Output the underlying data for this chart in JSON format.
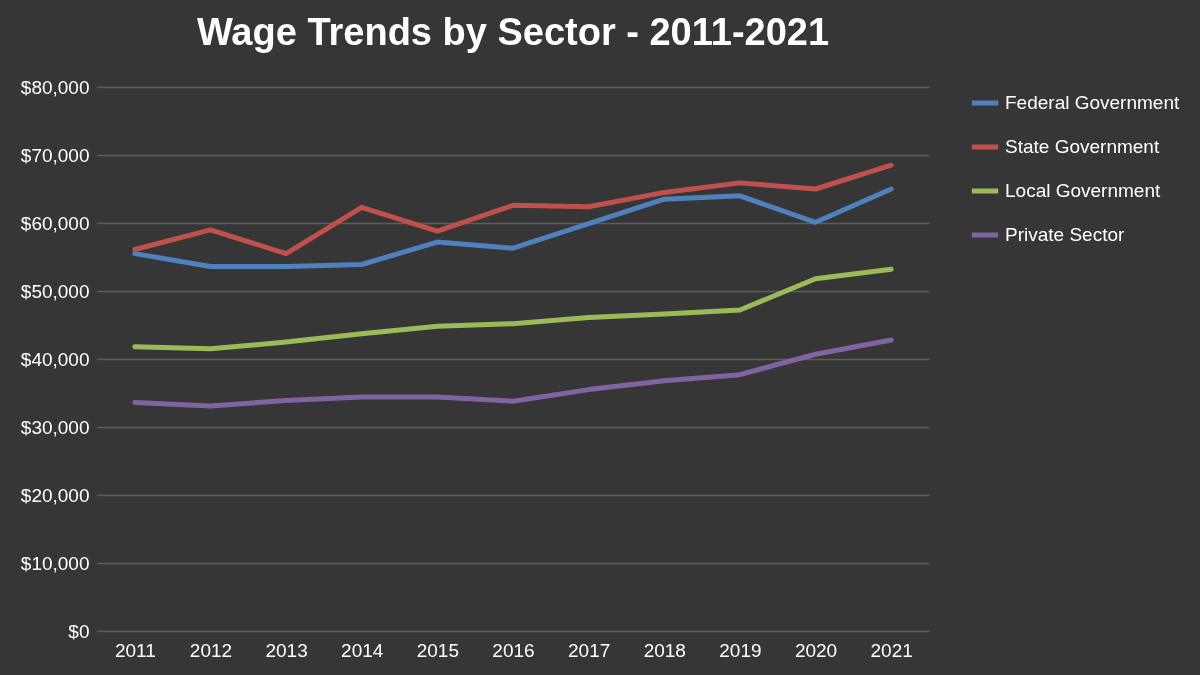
{
  "chart_data": {
    "type": "line",
    "title": "Wage Trends by Sector - 2011-2021",
    "categories": [
      "2011",
      "2012",
      "2013",
      "2014",
      "2015",
      "2016",
      "2017",
      "2018",
      "2019",
      "2020",
      "2021"
    ],
    "series": [
      {
        "name": "Federal Government",
        "color": "#4f81bd",
        "values": [
          55500,
          53600,
          53600,
          53900,
          57200,
          56300,
          59900,
          63500,
          64000,
          60100,
          65000
        ]
      },
      {
        "name": "State Government",
        "color": "#c0504d",
        "values": [
          56100,
          59000,
          55500,
          62300,
          58800,
          62600,
          62400,
          64500,
          65900,
          65000,
          68500
        ]
      },
      {
        "name": "Local Government",
        "color": "#9bbb59",
        "values": [
          41800,
          41500,
          42500,
          43700,
          44800,
          45200,
          46100,
          46600,
          47200,
          51800,
          53200
        ]
      },
      {
        "name": "Private Sector",
        "color": "#8064a2",
        "values": [
          33600,
          33100,
          33900,
          34400,
          34400,
          33800,
          35500,
          36800,
          37700,
          40700,
          42800
        ]
      }
    ],
    "ylim": [
      0,
      80000
    ],
    "yticks": [
      {
        "value": 0,
        "label": "$0"
      },
      {
        "value": 10000,
        "label": "$10,000"
      },
      {
        "value": 20000,
        "label": "$20,000"
      },
      {
        "value": 30000,
        "label": "$30,000"
      },
      {
        "value": 40000,
        "label": "$40,000"
      },
      {
        "value": 50000,
        "label": "$50,000"
      },
      {
        "value": 60000,
        "label": "$60,000"
      },
      {
        "value": 70000,
        "label": "$70,000"
      },
      {
        "value": 80000,
        "label": "$80,000"
      }
    ],
    "grid": "y",
    "legend": "right",
    "marker": "none",
    "line_style": "solid"
  }
}
